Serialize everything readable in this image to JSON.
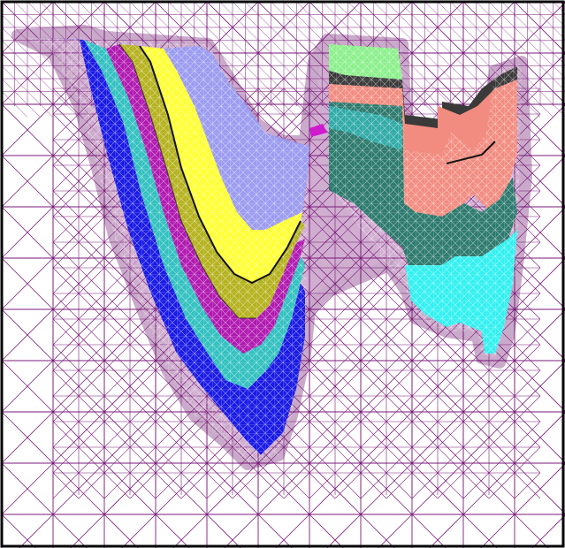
{
  "figure": {
    "kind": "adaptive triangular mesh with colored stratigraphic layers",
    "background": "#ffffff",
    "frame_color": "#000000",
    "mesh_color": "#7a1a7a",
    "boundary_color": "#6b0f6b",
    "layers": [
      {
        "name": "blue",
        "color": "#1a1ae6"
      },
      {
        "name": "teal",
        "color": "#33c0c0"
      },
      {
        "name": "magenta",
        "color": "#b01ab0"
      },
      {
        "name": "olive",
        "color": "#b5b21f"
      },
      {
        "name": "yellow",
        "color": "#ffff33"
      },
      {
        "name": "lavender",
        "color": "#9b9bf0"
      },
      {
        "name": "light-green",
        "color": "#8cf08c"
      },
      {
        "name": "dark-gray",
        "color": "#3a3a3a"
      },
      {
        "name": "salmon",
        "color": "#f28c80"
      },
      {
        "name": "dark-teal",
        "color": "#2e7a6e"
      },
      {
        "name": "cyan",
        "color": "#33f0f0"
      },
      {
        "name": "black",
        "color": "#111111"
      }
    ]
  }
}
